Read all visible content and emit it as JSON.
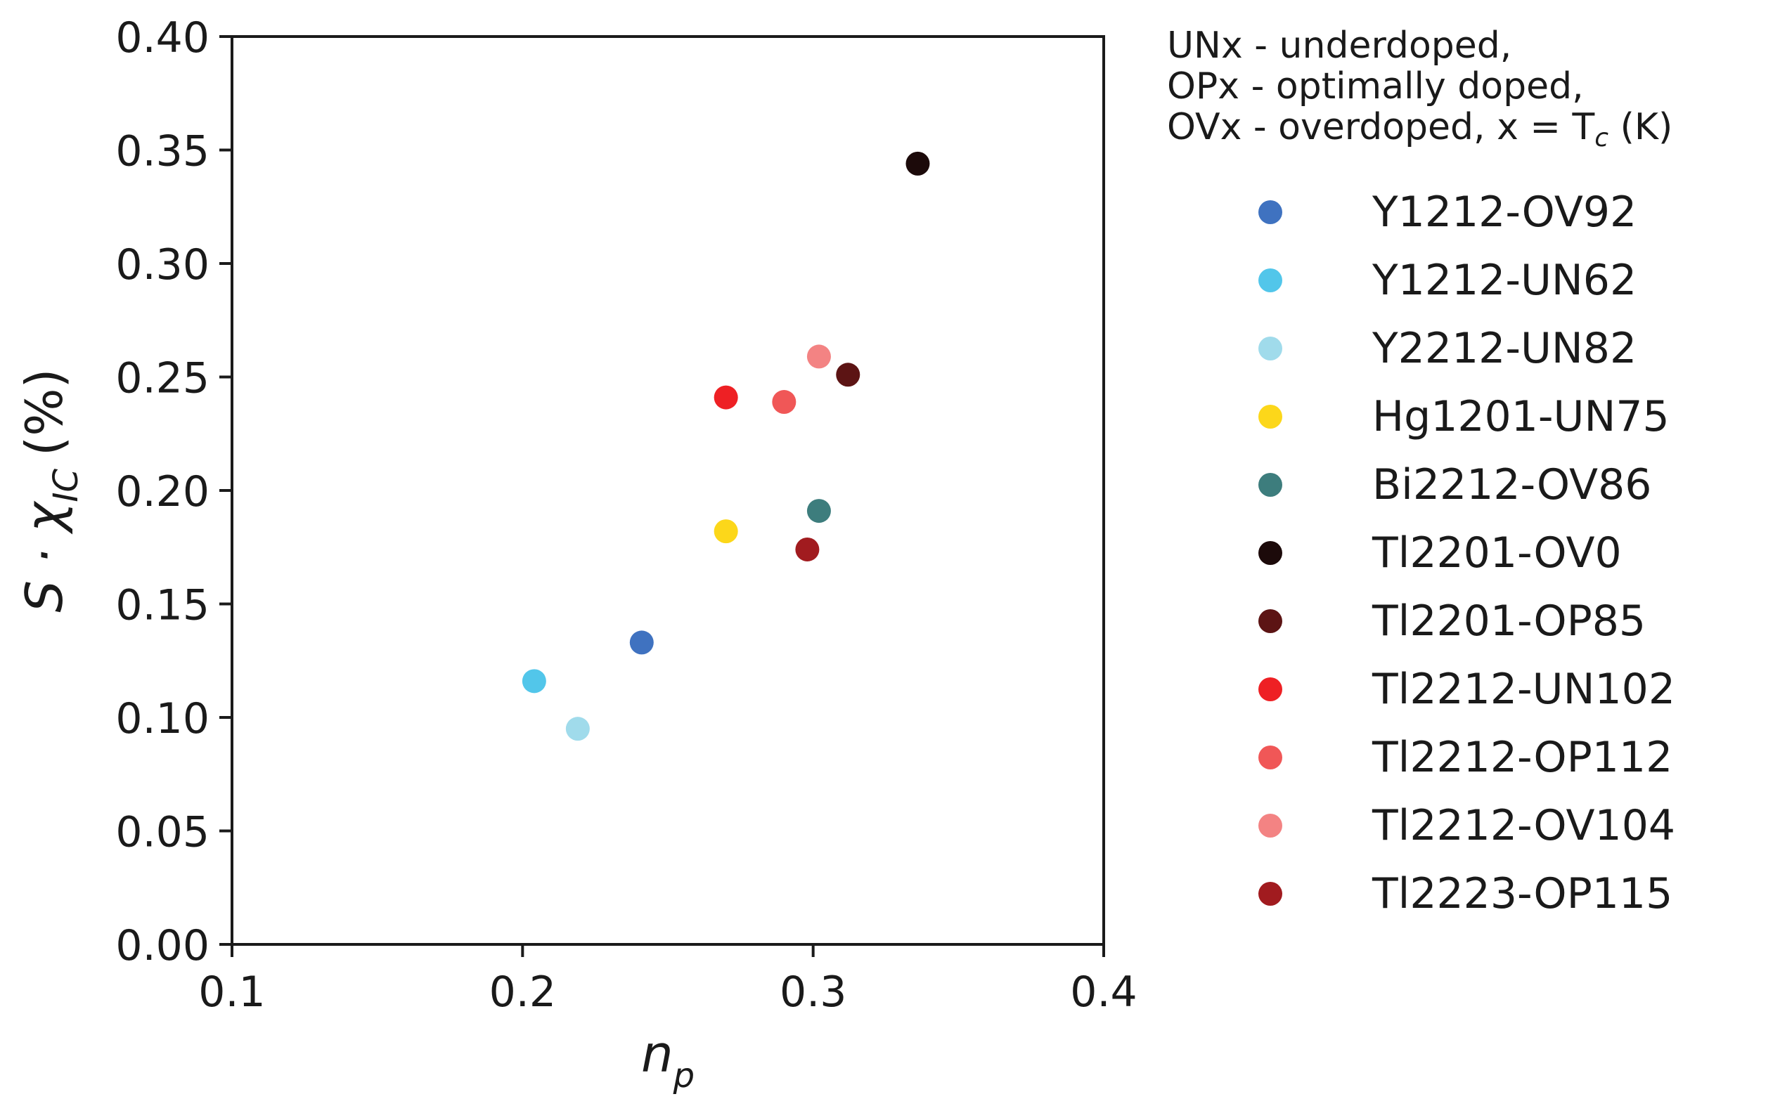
{
  "chart_data": {
    "type": "scatter",
    "xlabel": "n",
    "xlabel_sub": "p",
    "ylabel": "S · χ",
    "ylabel_sub": "IC",
    "ylabel_suffix": "(%)",
    "xlim": [
      0.1,
      0.4
    ],
    "ylim": [
      0.0,
      0.4
    ],
    "x_ticks": [
      "0.1",
      "0.2",
      "0.3",
      "0.4"
    ],
    "y_ticks": [
      "0.00",
      "0.05",
      "0.10",
      "0.15",
      "0.20",
      "0.25",
      "0.30",
      "0.35",
      "0.40"
    ],
    "grid": false,
    "legend_placement": "outside-right",
    "legend_note": {
      "line1": "UNx - underdoped,",
      "line2": "OPx - optimally doped,",
      "line3_prefix": "OVx - overdoped,  x = T",
      "line3_sub": "c",
      "line3_suffix": " (K)"
    },
    "series": [
      {
        "name": "Y1212-OV92",
        "color": "#3f72c0",
        "x": 0.241,
        "y": 0.133
      },
      {
        "name": "Y1212-UN62",
        "color": "#52c6ea",
        "x": 0.204,
        "y": 0.116
      },
      {
        "name": "Y2212-UN82",
        "color": "#a0dbeb",
        "x": 0.219,
        "y": 0.095
      },
      {
        "name": "Hg1201-UN75",
        "color": "#fcd71a",
        "x": 0.27,
        "y": 0.182
      },
      {
        "name": "Bi2212-OV86",
        "color": "#3d7d7d",
        "x": 0.302,
        "y": 0.191
      },
      {
        "name": "Tl2201-OV0",
        "color": "#1c0a0a",
        "x": 0.336,
        "y": 0.344
      },
      {
        "name": "Tl2201-OP85",
        "color": "#5c1414",
        "x": 0.312,
        "y": 0.251
      },
      {
        "name": "Tl2212-UN102",
        "color": "#ee2024",
        "x": 0.27,
        "y": 0.241
      },
      {
        "name": "Tl2212-OP112",
        "color": "#f05757",
        "x": 0.29,
        "y": 0.239
      },
      {
        "name": "Tl2212-OV104",
        "color": "#f38383",
        "x": 0.302,
        "y": 0.259
      },
      {
        "name": "Tl2223-OP115",
        "color": "#a11b1f",
        "x": 0.298,
        "y": 0.174
      }
    ]
  }
}
